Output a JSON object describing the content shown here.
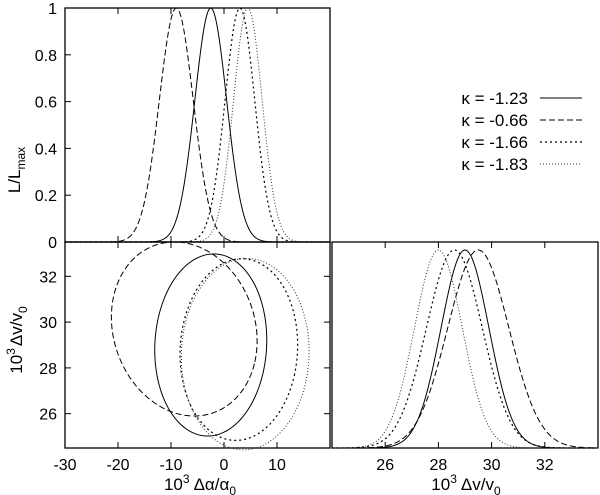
{
  "chart_data": [
    {
      "panel": "top-left",
      "type": "line",
      "xlim": [
        -30,
        20
      ],
      "ylim": [
        0,
        1
      ],
      "yticks": [
        "0",
        "0.2",
        "0.4",
        "0.6",
        "0.8",
        "1"
      ],
      "ylabel": "L/L",
      "ylabel_sub": "max",
      "xticks_labels_shown": false,
      "legend_position": "right",
      "series": [
        {
          "name": "κ = -1.23",
          "style": "solid",
          "mean": -2.5,
          "sigma": 3.0
        },
        {
          "name": "κ = -0.66",
          "style": "dashed",
          "mean": -9.0,
          "sigma": 3.2
        },
        {
          "name": "κ = -1.66",
          "style": "dotted",
          "mean": 3.0,
          "sigma": 2.8
        },
        {
          "name": "κ = -1.83",
          "style": "fine-dotted",
          "mean": 4.5,
          "sigma": 2.7
        }
      ]
    },
    {
      "panel": "bottom-left",
      "type": "scatter",
      "subtype": "contour",
      "xlim": [
        -30,
        20
      ],
      "ylim": [
        24.5,
        33.5
      ],
      "xticks": [
        "-30",
        "-20",
        "-10",
        "0",
        "10"
      ],
      "yticks": [
        "26",
        "28",
        "30",
        "32"
      ],
      "xlabel_prefix": "10",
      "xlabel_exp": "3",
      "xlabel_sym": "Δα/α",
      "xlabel_sub": "0",
      "ylabel_prefix": "10",
      "ylabel_exp": "3",
      "ylabel_sym": "Δv/v",
      "ylabel_sub": "0",
      "contours": [
        {
          "style": "solid",
          "cx": -2.5,
          "cy": 29.0,
          "rx": 10.5,
          "ry": 4.0,
          "tilt": -12
        },
        {
          "style": "dashed",
          "cx": -7.5,
          "cy": 29.7,
          "rx": 14.0,
          "ry": 3.7,
          "tilt": -18
        },
        {
          "style": "dotted",
          "cx": 2.8,
          "cy": 28.8,
          "rx": 11.0,
          "ry": 4.0,
          "tilt": -18
        },
        {
          "style": "fine-dotted",
          "cx": 4.0,
          "cy": 28.6,
          "rx": 12.0,
          "ry": 4.2,
          "tilt": -17
        }
      ]
    },
    {
      "panel": "bottom-right",
      "type": "line",
      "xlim": [
        24,
        34
      ],
      "xticks": [
        "26",
        "28",
        "30",
        "32"
      ],
      "xlabel_prefix": "10",
      "xlabel_exp": "3",
      "xlabel_sym": "Δv/v",
      "xlabel_sub": "0",
      "series": [
        {
          "style": "solid",
          "mean": 29.0,
          "sigma": 0.9
        },
        {
          "style": "dashed",
          "mean": 29.5,
          "sigma": 1.15
        },
        {
          "style": "dotted",
          "mean": 28.6,
          "sigma": 1.05
        },
        {
          "style": "fine-dotted",
          "mean": 28.0,
          "sigma": 0.9
        }
      ]
    }
  ]
}
